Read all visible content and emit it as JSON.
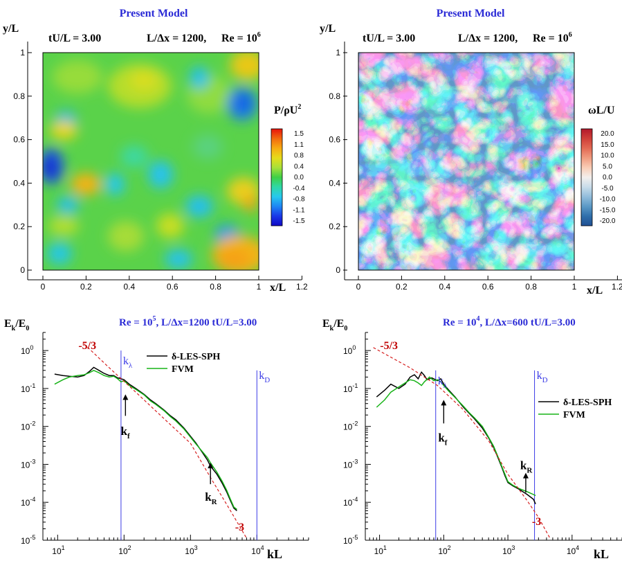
{
  "chart_data": [
    {
      "type": "heatmap",
      "title": "Present Model",
      "subtitle": [
        "tU/L = 3.00",
        "L/Δx = 1200,",
        "Re = 10",
        "6"
      ],
      "xlabel": "x/L",
      "ylabel": "y/L",
      "xlim": [
        0,
        1.2
      ],
      "ylim": [
        0,
        1
      ],
      "x_ticks": [
        "0",
        "0.2",
        "0.4",
        "0.6",
        "0.8",
        "1",
        "1.2"
      ],
      "y_ticks": [
        "0",
        "0.2",
        "0.4",
        "0.6",
        "0.8",
        "1"
      ],
      "colorbar": {
        "label": [
          "P/ρU",
          "2"
        ],
        "ticks": [
          "1.5",
          "1.1",
          "0.8",
          "0.4",
          "0.0",
          "-0.4",
          "-0.8",
          "-1.1",
          "-1.5"
        ],
        "colors": [
          "#e8120c",
          "#f26a0e",
          "#f7ab12",
          "#e6dc1a",
          "#a8e03a",
          "#3ed046",
          "#2fd8a6",
          "#26c8ee",
          "#1e86f4",
          "#1a38e8",
          "#1008c4"
        ]
      },
      "field": "pressure"
    },
    {
      "type": "heatmap",
      "title": "Present Model",
      "subtitle": [
        "tU/L = 3.00",
        "L/Δx = 1200,",
        "Re = 10",
        "6"
      ],
      "xlabel": "x/L",
      "ylabel": "y/L",
      "xlim": [
        0,
        1.2
      ],
      "ylim": [
        0,
        1
      ],
      "x_ticks": [
        "0",
        "0.2",
        "0.4",
        "0.6",
        "0.8",
        "1",
        "1.2"
      ],
      "y_ticks": [
        "0",
        "0.2",
        "0.4",
        "0.6",
        "0.8",
        "1"
      ],
      "colorbar": {
        "label": "ωL/U",
        "ticks": [
          "20.0",
          "15.0",
          "10.0",
          "5.0",
          "0.0",
          "-5.0",
          "-10.0",
          "-15.0",
          "-20.0"
        ],
        "colors": [
          "#b2182b",
          "#cf3f38",
          "#e26a54",
          "#f09c80",
          "#f9cdb6",
          "#f3efec",
          "#c8dcea",
          "#92bddc",
          "#5b99c6",
          "#2f6fab",
          "#1f4f93"
        ]
      },
      "field": "vorticity"
    },
    {
      "type": "line",
      "scale": "log-log",
      "title": [
        "Re = 10",
        "5",
        ",  L/Δx=1200  tU/L=3.00"
      ],
      "xlabel": "kL",
      "ylabel": [
        "E",
        "k",
        "/E",
        "0"
      ],
      "xlim": [
        6,
        60000
      ],
      "ylim": [
        1e-05,
        3
      ],
      "x_ticks": [
        [
          "10",
          "1"
        ],
        [
          "10",
          "2"
        ],
        [
          "10",
          "3"
        ],
        [
          "10",
          "4"
        ]
      ],
      "y_ticks": [
        [
          "10",
          "0"
        ],
        [
          "10",
          "-1"
        ],
        [
          "10",
          "-2"
        ],
        [
          "10",
          "-3"
        ],
        [
          "10",
          "-4"
        ],
        [
          "10",
          "-5"
        ]
      ],
      "legend": {
        "placement": "top-right",
        "entries": [
          "δ-LES-SPH",
          "FVM"
        ]
      },
      "series": [
        {
          "name": "δ-LES-SPH",
          "color": "#000000",
          "points": [
            [
              9,
              0.24
            ],
            [
              12,
              0.22
            ],
            [
              15,
              0.21
            ],
            [
              20,
              0.2
            ],
            [
              25,
              0.22
            ],
            [
              30,
              0.28
            ],
            [
              35,
              0.36
            ],
            [
              42,
              0.3
            ],
            [
              50,
              0.25
            ],
            [
              60,
              0.22
            ],
            [
              70,
              0.22
            ],
            [
              80,
              0.19
            ],
            [
              90,
              0.18
            ],
            [
              100,
              0.17
            ],
            [
              120,
              0.13
            ],
            [
              150,
              0.1
            ],
            [
              200,
              0.07
            ],
            [
              250,
              0.05
            ],
            [
              300,
              0.04
            ],
            [
              400,
              0.027
            ],
            [
              500,
              0.019
            ],
            [
              600,
              0.015
            ],
            [
              800,
              0.009
            ],
            [
              1000,
              0.0055
            ],
            [
              1200,
              0.0037
            ],
            [
              1500,
              0.0021
            ],
            [
              1800,
              0.0013
            ],
            [
              2000,
              0.0009
            ],
            [
              2500,
              0.00055
            ],
            [
              3000,
              0.00032
            ],
            [
              3500,
              0.00019
            ],
            [
              4000,
              0.00011
            ],
            [
              4500,
              7e-05
            ],
            [
              5000,
              6e-05
            ]
          ]
        },
        {
          "name": "FVM",
          "color": "#17b317",
          "points": [
            [
              9,
              0.13
            ],
            [
              12,
              0.17
            ],
            [
              15,
              0.2
            ],
            [
              20,
              0.22
            ],
            [
              25,
              0.23
            ],
            [
              30,
              0.26
            ],
            [
              35,
              0.3
            ],
            [
              42,
              0.26
            ],
            [
              50,
              0.22
            ],
            [
              60,
              0.2
            ],
            [
              70,
              0.21
            ],
            [
              80,
              0.18
            ],
            [
              90,
              0.15
            ],
            [
              100,
              0.16
            ],
            [
              120,
              0.12
            ],
            [
              150,
              0.095
            ],
            [
              200,
              0.068
            ],
            [
              250,
              0.047
            ],
            [
              300,
              0.038
            ],
            [
              400,
              0.026
            ],
            [
              500,
              0.018
            ],
            [
              600,
              0.014
            ],
            [
              800,
              0.0085
            ],
            [
              1000,
              0.0052
            ],
            [
              1200,
              0.0035
            ],
            [
              1500,
              0.0022
            ],
            [
              1800,
              0.0015
            ],
            [
              2000,
              0.0011
            ],
            [
              2500,
              0.00062
            ],
            [
              3000,
              0.00036
            ],
            [
              3500,
              0.00021
            ],
            [
              4000,
              0.00012
            ],
            [
              4500,
              7.5e-05
            ],
            [
              5000,
              6.5e-05
            ]
          ]
        },
        {
          "name": "",
          "color": "#d62020",
          "dash": true,
          "points": [
            [
              25,
              1.5
            ],
            [
              60,
              0.35
            ],
            [
              150,
              0.08
            ],
            [
              400,
              0.016
            ],
            [
              1000,
              0.0036
            ],
            [
              2000,
              0.00045
            ],
            [
              4000,
              6e-05
            ],
            [
              7000,
              1.13e-05
            ]
          ]
        }
      ],
      "vlines": [
        {
          "x": 90,
          "top": 1,
          "bottom": 1e-05,
          "label": [
            "k",
            "λ"
          ],
          "color": "#3a3ae6"
        },
        {
          "x": 10000,
          "top": 0.3,
          "bottom": 1e-05,
          "label": [
            "k",
            "D"
          ],
          "color": "#3a3ae6"
        }
      ],
      "annotations": [
        {
          "text": "-5/3",
          "x": 28,
          "y": 1.1,
          "color": "#c00000"
        },
        {
          "text": "-3",
          "x": 5500,
          "y": 1.8e-05,
          "color": "#c00000"
        },
        {
          "text": [
            "k",
            "f"
          ],
          "arrow_x": 105,
          "arrow_from": 0.019,
          "arrow_to": 0.07,
          "label_x": 108,
          "label_y": 0.006
        },
        {
          "text": [
            "k",
            "R"
          ],
          "arrow_x": 2000,
          "arrow_from": 0.0003,
          "arrow_to": 0.0011,
          "label_x": 2000,
          "label_y": 0.00011
        }
      ]
    },
    {
      "type": "line",
      "scale": "log-log",
      "title": [
        "Re = 10",
        "4",
        ",  L/Δx=600  tU/L=3.00"
      ],
      "xlabel": "kL",
      "ylabel": [
        "E",
        "k",
        "/E",
        "0"
      ],
      "xlim": [
        6,
        60000
      ],
      "ylim": [
        1e-05,
        3
      ],
      "x_ticks": [
        [
          "10",
          "1"
        ],
        [
          "10",
          "2"
        ],
        [
          "10",
          "3"
        ],
        [
          "10",
          "4"
        ]
      ],
      "y_ticks": [
        [
          "10",
          "0"
        ],
        [
          "10",
          "-1"
        ],
        [
          "10",
          "-2"
        ],
        [
          "10",
          "-3"
        ],
        [
          "10",
          "-4"
        ],
        [
          "10",
          "-5"
        ]
      ],
      "legend": {
        "placement": "right",
        "entries": [
          "δ-LES-SPH",
          "FVM"
        ]
      },
      "series": [
        {
          "name": "δ-LES-SPH",
          "color": "#000000",
          "points": [
            [
              9,
              0.06
            ],
            [
              12,
              0.09
            ],
            [
              15,
              0.13
            ],
            [
              20,
              0.1
            ],
            [
              25,
              0.13
            ],
            [
              30,
              0.2
            ],
            [
              35,
              0.23
            ],
            [
              40,
              0.18
            ],
            [
              45,
              0.27
            ],
            [
              50,
              0.22
            ],
            [
              55,
              0.17
            ],
            [
              65,
              0.19
            ],
            [
              80,
              0.16
            ],
            [
              90,
              0.18
            ],
            [
              100,
              0.13
            ],
            [
              120,
              0.09
            ],
            [
              150,
              0.06
            ],
            [
              200,
              0.033
            ],
            [
              250,
              0.022
            ],
            [
              300,
              0.016
            ],
            [
              400,
              0.009
            ],
            [
              500,
              0.005
            ],
            [
              600,
              0.0028
            ],
            [
              700,
              0.0015
            ],
            [
              800,
              0.00085
            ],
            [
              900,
              0.0005
            ],
            [
              1000,
              0.00033
            ],
            [
              1200,
              0.00027
            ],
            [
              1500,
              0.00022
            ],
            [
              2000,
              0.00016
            ],
            [
              2500,
              0.00012
            ],
            [
              2700,
              9e-05
            ]
          ]
        },
        {
          "name": "FVM",
          "color": "#17b317",
          "points": [
            [
              9,
              0.032
            ],
            [
              12,
              0.05
            ],
            [
              15,
              0.08
            ],
            [
              20,
              0.11
            ],
            [
              25,
              0.14
            ],
            [
              30,
              0.17
            ],
            [
              35,
              0.16
            ],
            [
              40,
              0.14
            ],
            [
              45,
              0.12
            ],
            [
              50,
              0.15
            ],
            [
              60,
              0.2
            ],
            [
              70,
              0.16
            ],
            [
              80,
              0.17
            ],
            [
              90,
              0.15
            ],
            [
              100,
              0.12
            ],
            [
              120,
              0.085
            ],
            [
              150,
              0.058
            ],
            [
              200,
              0.035
            ],
            [
              250,
              0.023
            ],
            [
              300,
              0.017
            ],
            [
              400,
              0.01
            ],
            [
              500,
              0.0052
            ],
            [
              600,
              0.003
            ],
            [
              700,
              0.0016
            ],
            [
              800,
              0.0009
            ],
            [
              900,
              0.00055
            ],
            [
              1000,
              0.00035
            ],
            [
              1200,
              0.00028
            ],
            [
              1500,
              0.00023
            ],
            [
              2000,
              0.00019
            ],
            [
              2500,
              0.00016
            ],
            [
              2700,
              0.00015
            ]
          ]
        },
        {
          "name": "",
          "color": "#d62020",
          "dash": true,
          "points": [
            [
              8,
              1.2
            ],
            [
              30,
              0.35
            ],
            [
              80,
              0.12
            ],
            [
              200,
              0.028
            ],
            [
              500,
              0.0042
            ],
            [
              1000,
              0.00055
            ],
            [
              2000,
              0.00011
            ],
            [
              3000,
              4e-05
            ],
            [
              4500,
              1.15e-05
            ]
          ]
        }
      ],
      "vlines": [
        {
          "x": 75,
          "top": 0.3,
          "bottom": 1e-05,
          "label": [
            "k",
            "λ"
          ],
          "color": "#3a3ae6"
        },
        {
          "x": 2600,
          "top": 0.3,
          "bottom": 1e-05,
          "label": [
            "k",
            "D"
          ],
          "color": "#3a3ae6"
        }
      ],
      "annotations": [
        {
          "text": "-5/3",
          "x": 14,
          "y": 1.1,
          "color": "#c00000"
        },
        {
          "text": "-3",
          "x": 2800,
          "y": 2.5e-05,
          "color": "#c00000"
        },
        {
          "text": [
            "k",
            "f"
          ],
          "arrow_x": 100,
          "arrow_from": 0.012,
          "arrow_to": 0.05,
          "label_x": 100,
          "label_y": 0.004
        },
        {
          "text": [
            "k",
            "R"
          ],
          "arrow_x": 1900,
          "arrow_from": 0.00018,
          "arrow_to": 0.0006,
          "label_x": 1900,
          "label_y": 0.00075
        }
      ]
    }
  ]
}
